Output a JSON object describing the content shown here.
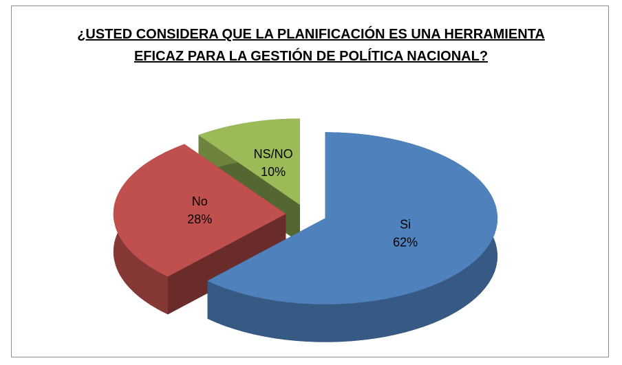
{
  "chart_data": {
    "type": "pie3d",
    "title": "¿USTED CONSIDERA QUE LA PLANIFICACIÓN ES UNA HERRAMIENTA EFICAZ PARA LA GESTIÓN DE POLÍTICA NACIONAL?",
    "categories": [
      "Si",
      "No",
      "NS/NO"
    ],
    "values": [
      62,
      28,
      10
    ],
    "value_labels": [
      "62%",
      "28%",
      "10%"
    ],
    "colors": [
      "#4f81bd",
      "#c0504d",
      "#9bbb59"
    ]
  }
}
